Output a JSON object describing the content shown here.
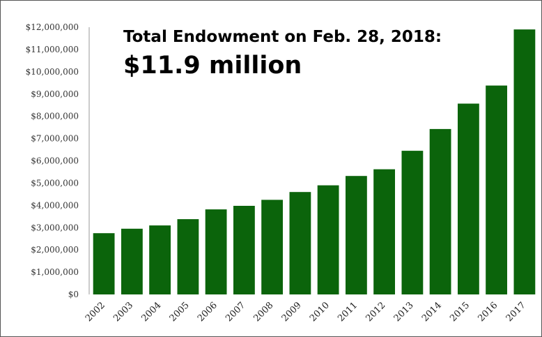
{
  "chart_data": {
    "type": "bar",
    "title": "Total Endowment on Feb. 28, 2018:",
    "subtitle": "$11.9 million",
    "xlabel": "",
    "ylabel": "",
    "categories": [
      "2002",
      "2003",
      "2004",
      "2005",
      "2006",
      "2007",
      "2008",
      "2009",
      "2010",
      "2011",
      "2012",
      "2013",
      "2014",
      "2015",
      "2016",
      "2017"
    ],
    "values": [
      2750000,
      2950000,
      3100000,
      3380000,
      3820000,
      3980000,
      4250000,
      4600000,
      4900000,
      5320000,
      5620000,
      6450000,
      7430000,
      8570000,
      9380000,
      11900000
    ],
    "ylim": [
      0,
      12000000
    ],
    "yticks": [
      "$0",
      "$1,000,000",
      "$2,000,000",
      "$3,000,000",
      "$4,000,000",
      "$5,000,000",
      "$6,000,000",
      "$7,000,000",
      "$8,000,000",
      "$9,000,000",
      "$10,000,000",
      "$11,000,000",
      "$12,000,000"
    ],
    "grid": false,
    "legend": "none",
    "colors": {
      "bar": "#0b640b",
      "axis": "#999999"
    }
  }
}
